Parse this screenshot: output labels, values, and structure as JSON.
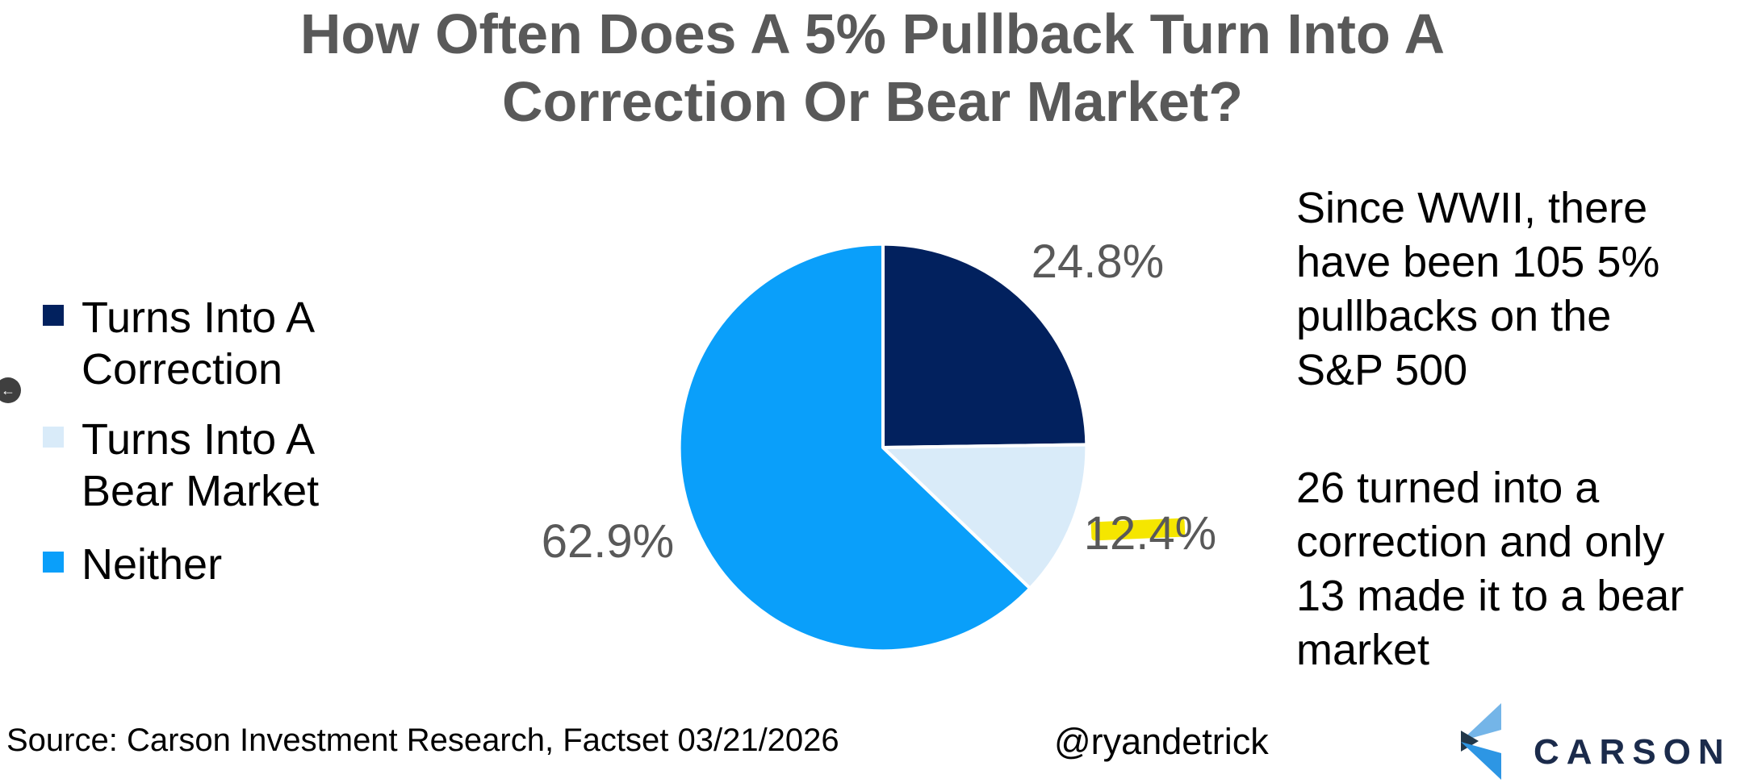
{
  "title": {
    "line1": "How Often Does A 5% Pullback Turn Into A",
    "line2": "Correction Or Bear Market?"
  },
  "chart_data": {
    "type": "pie",
    "title": "How Often Does A 5% Pullback Turn Into A Correction Or Bear Market?",
    "categories": [
      "Turns Into A Correction",
      "Turns Into A Bear Market",
      "Neither"
    ],
    "values": [
      24.8,
      12.4,
      62.9
    ],
    "unit": "percent",
    "slice_labels": [
      "24.8%",
      "12.4%",
      "62.9%"
    ],
    "colors": [
      "#02215E",
      "#D9EBF9",
      "#0A9FFA"
    ],
    "start_angle": "12 o'clock, clockwise",
    "legend_position": "left",
    "highlighted_label": "12.4%",
    "highlight_color": "#F5E600",
    "label_color": "#595959",
    "title_color": "#595959"
  },
  "legend": {
    "items": [
      {
        "label": "Turns Into A Correction",
        "color": "#02215E"
      },
      {
        "label": "Turns Into A Bear Market",
        "color": "#D9EBF9"
      },
      {
        "label": "Neither",
        "color": "#0A9FFA"
      }
    ]
  },
  "annotation": {
    "p1_lines": [
      "Since WWII, there",
      "have been 105 5%",
      "pullbacks on the",
      "S&P 500"
    ],
    "p2_lines": [
      "26 turned into a",
      "correction and only",
      "13 made it to a bear",
      "market"
    ]
  },
  "footer": {
    "source": "Source: Carson Investment Research, Factset 03/21/2026",
    "handle": "@ryandetrick"
  },
  "logo": {
    "text": "CARSON",
    "text_color": "#1B2B4B",
    "mark_colors": [
      "#74B5E8",
      "#22384A",
      "#2D96E4"
    ]
  },
  "back_button": {
    "icon": "←"
  }
}
